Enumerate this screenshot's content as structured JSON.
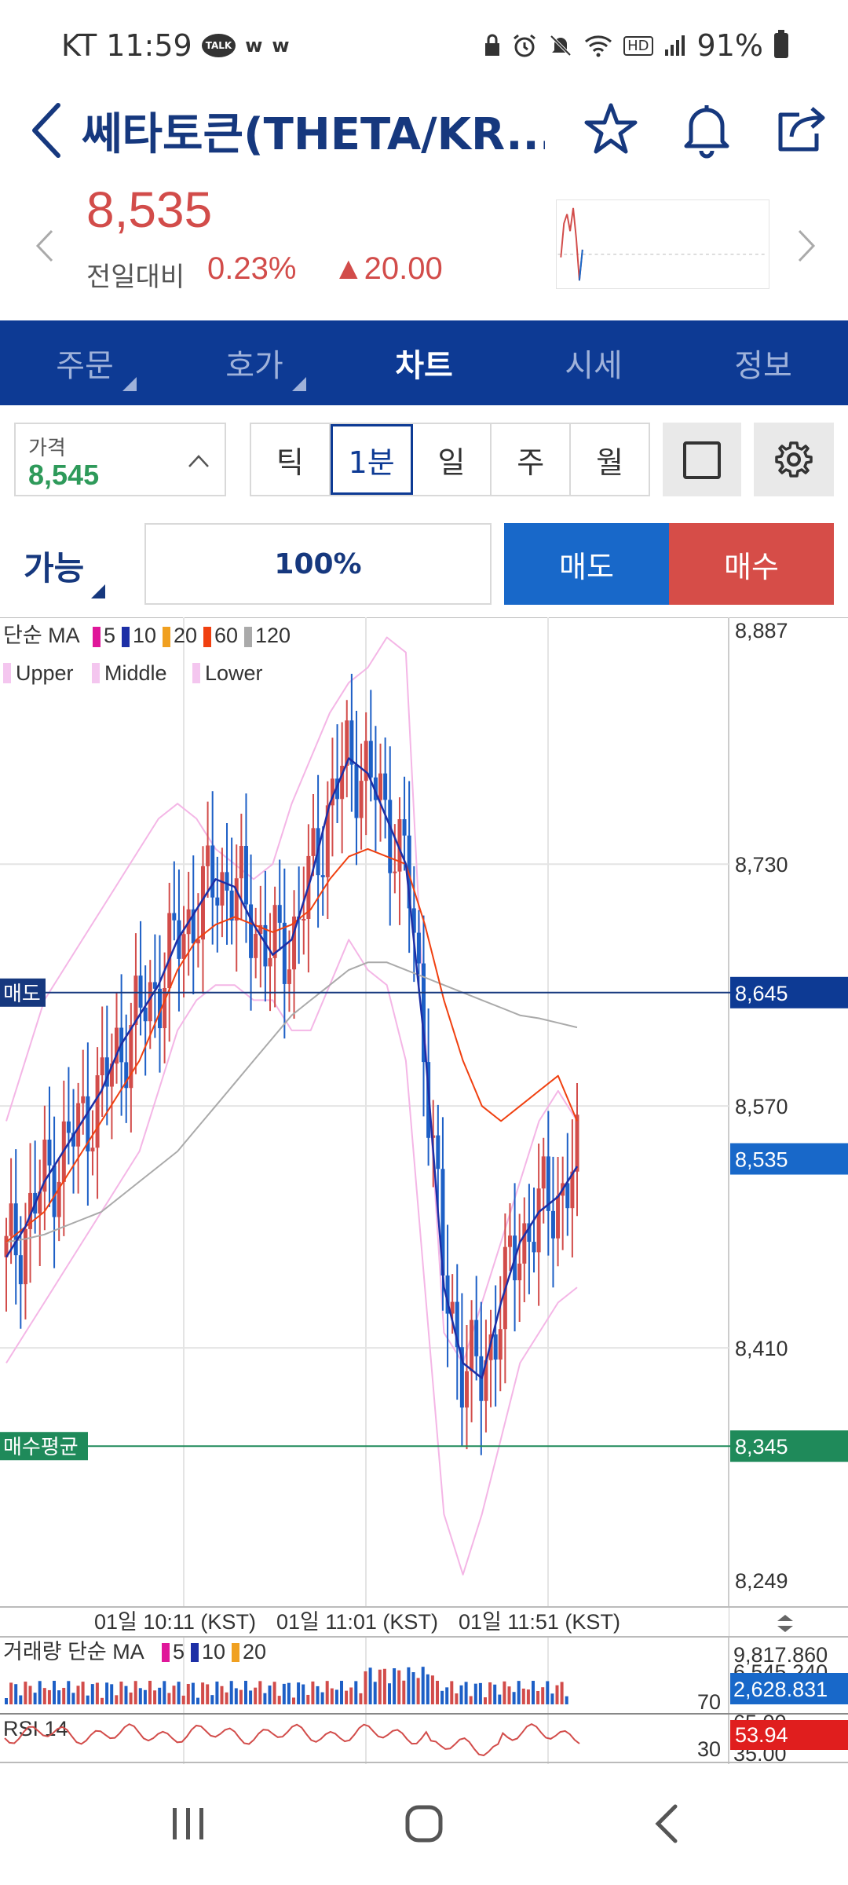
{
  "status": {
    "carrier": "KT",
    "time": "11:59",
    "talk": "TALK",
    "w1": "w",
    "w2": "w",
    "battery": "91%",
    "hd": "HD"
  },
  "header": {
    "title": "쎄타토큰(THETA/KR..."
  },
  "quote": {
    "price": "8,535",
    "prev_label": "전일대비",
    "change_pct": "0.23%",
    "change_amt": "▲20.00"
  },
  "tabs": [
    {
      "label": "주문",
      "active": false
    },
    {
      "label": "호가",
      "active": false
    },
    {
      "label": "차트",
      "active": true
    },
    {
      "label": "시세",
      "active": false
    },
    {
      "label": "정보",
      "active": false
    }
  ],
  "price_box": {
    "label": "가격",
    "value": "8,545"
  },
  "periods": [
    {
      "label": "틱",
      "active": false
    },
    {
      "label": "1분",
      "active": true
    },
    {
      "label": "일",
      "active": false
    },
    {
      "label": "주",
      "active": false
    },
    {
      "label": "월",
      "active": false
    }
  ],
  "order": {
    "available": "가능",
    "percent": "100%",
    "sell": "매도",
    "buy": "매수"
  },
  "chart_data": {
    "type": "candlestick",
    "ma_legend": {
      "prefix": "단순 MA",
      "periods": [
        "5",
        "10",
        "20",
        "60",
        "120"
      ],
      "colors": [
        "#e0179a",
        "#1d2fa6",
        "#f0a020",
        "#f04010",
        "#aaaaaa"
      ]
    },
    "bb_legend": [
      "Upper",
      "Middle",
      "Lower"
    ],
    "y_ticks": [
      "8,887",
      "8,730",
      "8,570",
      "8,410",
      "8,249"
    ],
    "y_tick_values": [
      8887,
      8730,
      8570,
      8410,
      8249
    ],
    "ylim": [
      8249,
      8887
    ],
    "sell_line": {
      "label": "매도",
      "value": "8,645",
      "num": 8645
    },
    "current": {
      "value": "8,535",
      "num": 8535
    },
    "avg_line": {
      "label": "매수평균",
      "value": "8,345",
      "num": 8345
    },
    "x_labels": [
      "01일 10:11 (KST)",
      "01일 11:01 (KST)",
      "01일 11:51 (KST)"
    ],
    "ma5": [
      8470,
      8490,
      8520,
      8540,
      8560,
      8580,
      8610,
      8630,
      8650,
      8680,
      8700,
      8720,
      8715,
      8690,
      8670,
      8680,
      8720,
      8770,
      8800,
      8790,
      8760,
      8730,
      8610,
      8450,
      8400,
      8390,
      8440,
      8480,
      8500,
      8510,
      8530
    ],
    "ma20": [
      8480,
      8490,
      8500,
      8520,
      8540,
      8560,
      8580,
      8600,
      8630,
      8660,
      8680,
      8690,
      8695,
      8690,
      8685,
      8690,
      8700,
      8720,
      8735,
      8740,
      8735,
      8730,
      8690,
      8640,
      8600,
      8570,
      8560,
      8570,
      8580,
      8590,
      8560
    ],
    "ma120": [
      8480,
      8482,
      8485,
      8490,
      8495,
      8500,
      8510,
      8520,
      8530,
      8540,
      8555,
      8570,
      8585,
      8600,
      8615,
      8630,
      8640,
      8650,
      8660,
      8665,
      8665,
      8660,
      8655,
      8650,
      8645,
      8640,
      8635,
      8630,
      8628,
      8625,
      8622
    ],
    "bb_upper": [
      8560,
      8600,
      8640,
      8660,
      8680,
      8700,
      8720,
      8740,
      8760,
      8770,
      8760,
      8740,
      8730,
      8720,
      8730,
      8770,
      8800,
      8830,
      8850,
      8860,
      8880,
      8870,
      8620,
      8420,
      8400,
      8440,
      8480,
      8520,
      8560,
      8580,
      8560
    ],
    "bb_lower": [
      8400,
      8420,
      8440,
      8460,
      8480,
      8500,
      8520,
      8540,
      8580,
      8620,
      8640,
      8650,
      8650,
      8640,
      8640,
      8620,
      8620,
      8650,
      8680,
      8660,
      8650,
      8600,
      8450,
      8300,
      8260,
      8300,
      8350,
      8400,
      8420,
      8440,
      8450
    ],
    "volume": {
      "label": "거래량 단순 MA",
      "periods": [
        "5",
        "10",
        "20"
      ],
      "ticks": [
        "9,817.860",
        "6,545.240"
      ],
      "current": "2,628.831",
      "level": "70"
    },
    "rsi": {
      "label": "RSI 14",
      "ticks": [
        "65.00",
        "35.00"
      ],
      "level": "30",
      "current": "53.94"
    }
  }
}
